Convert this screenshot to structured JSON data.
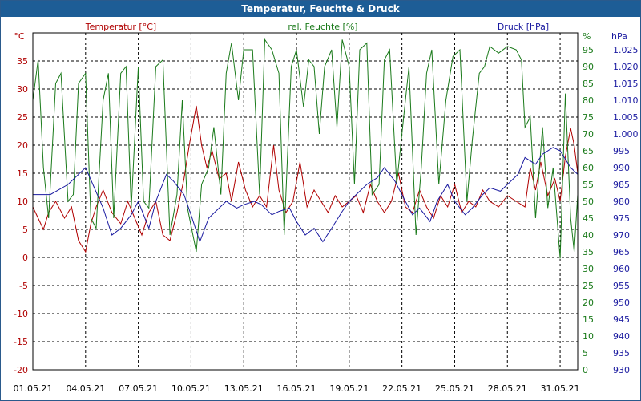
{
  "window": {
    "title": "Temperatur, Feuchte & Druck"
  },
  "chart_data": {
    "type": "line",
    "title": "Temperatur, Feuchte & Druck",
    "x_ticks": [
      "01.05.21",
      "04.05.21",
      "07.05.21",
      "10.05.21",
      "13.05.21",
      "16.05.21",
      "19.05.21",
      "22.05.21",
      "25.05.21",
      "28.05.21",
      "31.05.21"
    ],
    "x_range_days": [
      0,
      31
    ],
    "grid": true,
    "axes": {
      "temperature": {
        "unit": "°C",
        "range": [
          -20,
          40
        ],
        "ticks": [
          "35",
          "30",
          "25",
          "20",
          "15",
          "10",
          "5",
          "0",
          "-5",
          "-10",
          "-15",
          "-20"
        ],
        "color": "#b00000"
      },
      "humidity": {
        "unit": "%",
        "range": [
          0,
          100
        ],
        "ticks": [
          "95",
          "90",
          "85",
          "80",
          "75",
          "70",
          "65",
          "60",
          "55",
          "50",
          "45",
          "40",
          "35",
          "30",
          "25",
          "20",
          "15",
          "10",
          "5",
          "0"
        ],
        "color": "#1a7a1a"
      },
      "pressure": {
        "unit": "hPa",
        "range": [
          930,
          1030
        ],
        "ticks": [
          "1.025",
          "1.020",
          "1.015",
          "1.010",
          "1.005",
          "1.000",
          "995",
          "990",
          "985",
          "980",
          "975",
          "970",
          "965",
          "960",
          "955",
          "950",
          "945",
          "940",
          "935",
          "930"
        ],
        "color": "#1a1aa0"
      }
    },
    "series": [
      {
        "name": "Temperatur [°C]",
        "axis": "temperature",
        "color": "#b00000",
        "values": [
          [
            0,
            9
          ],
          [
            0.3,
            7
          ],
          [
            0.6,
            5
          ],
          [
            0.9,
            8
          ],
          [
            1.3,
            10
          ],
          [
            1.8,
            7
          ],
          [
            2.2,
            9
          ],
          [
            2.6,
            3
          ],
          [
            3,
            1
          ],
          [
            3.3,
            6
          ],
          [
            3.6,
            9
          ],
          [
            4,
            12
          ],
          [
            4.5,
            8
          ],
          [
            5,
            6
          ],
          [
            5.4,
            10
          ],
          [
            5.8,
            7
          ],
          [
            6.2,
            4
          ],
          [
            6.6,
            8
          ],
          [
            7,
            10
          ],
          [
            7.4,
            4
          ],
          [
            7.8,
            3
          ],
          [
            8.2,
            8
          ],
          [
            8.6,
            14
          ],
          [
            8.9,
            20
          ],
          [
            9.3,
            27
          ],
          [
            9.6,
            20
          ],
          [
            9.9,
            16
          ],
          [
            10.2,
            19
          ],
          [
            10.6,
            14
          ],
          [
            11,
            15
          ],
          [
            11.3,
            10
          ],
          [
            11.7,
            17
          ],
          [
            12.1,
            12
          ],
          [
            12.5,
            9
          ],
          [
            12.9,
            11
          ],
          [
            13.3,
            9
          ],
          [
            13.7,
            20
          ],
          [
            14,
            12
          ],
          [
            14.4,
            8
          ],
          [
            14.8,
            10
          ],
          [
            15.2,
            17
          ],
          [
            15.6,
            9
          ],
          [
            16,
            12
          ],
          [
            16.4,
            10
          ],
          [
            16.8,
            8
          ],
          [
            17.2,
            11
          ],
          [
            17.6,
            9
          ],
          [
            18,
            10
          ],
          [
            18.4,
            11
          ],
          [
            18.8,
            8
          ],
          [
            19.2,
            13
          ],
          [
            19.6,
            10
          ],
          [
            20,
            8
          ],
          [
            20.4,
            10
          ],
          [
            20.8,
            15
          ],
          [
            21.2,
            9
          ],
          [
            21.6,
            8
          ],
          [
            22,
            12
          ],
          [
            22.4,
            9
          ],
          [
            22.8,
            7
          ],
          [
            23.2,
            11
          ],
          [
            23.6,
            9
          ],
          [
            24,
            13
          ],
          [
            24.4,
            8
          ],
          [
            24.8,
            10
          ],
          [
            25.2,
            9
          ],
          [
            25.6,
            12
          ],
          [
            26,
            10
          ],
          [
            26.5,
            9
          ],
          [
            27,
            11
          ],
          [
            27.5,
            10
          ],
          [
            28,
            9
          ],
          [
            28.3,
            16
          ],
          [
            28.6,
            12
          ],
          [
            28.9,
            17
          ],
          [
            29.3,
            11
          ],
          [
            29.7,
            14
          ],
          [
            30,
            10
          ],
          [
            30.3,
            18
          ],
          [
            30.6,
            23
          ],
          [
            30.8,
            20
          ],
          [
            31,
            15
          ]
        ]
      },
      {
        "name": "rel. Feuchte [%]",
        "axis": "humidity",
        "color": "#1a7a1a",
        "values": [
          [
            0,
            80
          ],
          [
            0.3,
            92
          ],
          [
            0.6,
            60
          ],
          [
            0.9,
            45
          ],
          [
            1.3,
            85
          ],
          [
            1.6,
            88
          ],
          [
            2,
            50
          ],
          [
            2.3,
            52
          ],
          [
            2.6,
            85
          ],
          [
            3,
            88
          ],
          [
            3.3,
            45
          ],
          [
            3.6,
            42
          ],
          [
            4,
            80
          ],
          [
            4.3,
            88
          ],
          [
            4.6,
            45
          ],
          [
            5,
            88
          ],
          [
            5.3,
            90
          ],
          [
            5.6,
            48
          ],
          [
            6,
            90
          ],
          [
            6.3,
            50
          ],
          [
            6.6,
            48
          ],
          [
            7,
            90
          ],
          [
            7.4,
            92
          ],
          [
            7.8,
            40
          ],
          [
            8.2,
            52
          ],
          [
            8.5,
            80
          ],
          [
            8.8,
            48
          ],
          [
            9.3,
            35
          ],
          [
            9.6,
            55
          ],
          [
            10,
            60
          ],
          [
            10.3,
            72
          ],
          [
            10.7,
            52
          ],
          [
            11,
            88
          ],
          [
            11.3,
            97
          ],
          [
            11.7,
            80
          ],
          [
            12,
            95
          ],
          [
            12.5,
            95
          ],
          [
            12.9,
            52
          ],
          [
            13.2,
            98
          ],
          [
            13.6,
            95
          ],
          [
            14,
            88
          ],
          [
            14.3,
            40
          ],
          [
            14.7,
            90
          ],
          [
            15,
            95
          ],
          [
            15.4,
            78
          ],
          [
            15.7,
            92
          ],
          [
            16,
            90
          ],
          [
            16.3,
            70
          ],
          [
            16.6,
            90
          ],
          [
            17,
            95
          ],
          [
            17.3,
            72
          ],
          [
            17.6,
            98
          ],
          [
            18,
            90
          ],
          [
            18.3,
            55
          ],
          [
            18.6,
            95
          ],
          [
            19,
            97
          ],
          [
            19.3,
            52
          ],
          [
            19.7,
            55
          ],
          [
            20,
            92
          ],
          [
            20.3,
            95
          ],
          [
            20.7,
            55
          ],
          [
            21,
            70
          ],
          [
            21.4,
            90
          ],
          [
            21.8,
            40
          ],
          [
            22.1,
            60
          ],
          [
            22.4,
            88
          ],
          [
            22.7,
            95
          ],
          [
            23.1,
            55
          ],
          [
            23.5,
            80
          ],
          [
            23.9,
            93
          ],
          [
            24.3,
            95
          ],
          [
            24.7,
            50
          ],
          [
            25,
            68
          ],
          [
            25.4,
            88
          ],
          [
            25.7,
            90
          ],
          [
            26,
            96
          ],
          [
            26.5,
            94
          ],
          [
            27,
            96
          ],
          [
            27.5,
            95
          ],
          [
            27.8,
            92
          ],
          [
            28,
            72
          ],
          [
            28.3,
            75
          ],
          [
            28.6,
            45
          ],
          [
            29,
            72
          ],
          [
            29.3,
            48
          ],
          [
            29.6,
            60
          ],
          [
            30,
            33
          ],
          [
            30.3,
            82
          ],
          [
            30.6,
            45
          ],
          [
            30.8,
            35
          ],
          [
            31,
            52
          ]
        ]
      },
      {
        "name": "Druck [hPa]",
        "axis": "pressure",
        "color": "#1a1aa0",
        "values": [
          [
            0,
            982
          ],
          [
            1,
            982
          ],
          [
            2,
            985
          ],
          [
            3,
            990
          ],
          [
            4,
            978
          ],
          [
            4.5,
            970
          ],
          [
            5,
            972
          ],
          [
            5.6,
            976
          ],
          [
            6,
            980
          ],
          [
            6.6,
            972
          ],
          [
            7,
            980
          ],
          [
            7.6,
            988
          ],
          [
            8,
            986
          ],
          [
            8.6,
            982
          ],
          [
            9,
            976
          ],
          [
            9.5,
            968
          ],
          [
            10,
            975
          ],
          [
            10.6,
            978
          ],
          [
            11,
            980
          ],
          [
            11.6,
            978
          ],
          [
            12,
            979
          ],
          [
            12.6,
            980
          ],
          [
            13,
            979
          ],
          [
            13.6,
            976
          ],
          [
            14,
            977
          ],
          [
            14.6,
            978
          ],
          [
            15,
            974
          ],
          [
            15.5,
            970
          ],
          [
            16,
            972
          ],
          [
            16.5,
            968
          ],
          [
            17,
            972
          ],
          [
            17.6,
            977
          ],
          [
            18,
            980
          ],
          [
            18.6,
            983
          ],
          [
            19,
            985
          ],
          [
            19.6,
            987
          ],
          [
            20,
            990
          ],
          [
            20.6,
            986
          ],
          [
            21,
            982
          ],
          [
            21.6,
            976
          ],
          [
            22,
            978
          ],
          [
            22.6,
            974
          ],
          [
            23,
            980
          ],
          [
            23.6,
            985
          ],
          [
            24,
            980
          ],
          [
            24.6,
            976
          ],
          [
            25,
            978
          ],
          [
            25.6,
            982
          ],
          [
            26,
            984
          ],
          [
            26.6,
            983
          ],
          [
            27,
            985
          ],
          [
            27.6,
            988
          ],
          [
            28,
            993
          ],
          [
            28.6,
            991
          ],
          [
            29,
            994
          ],
          [
            29.6,
            996
          ],
          [
            30,
            995
          ],
          [
            30.6,
            990
          ],
          [
            31,
            988
          ]
        ]
      }
    ]
  }
}
